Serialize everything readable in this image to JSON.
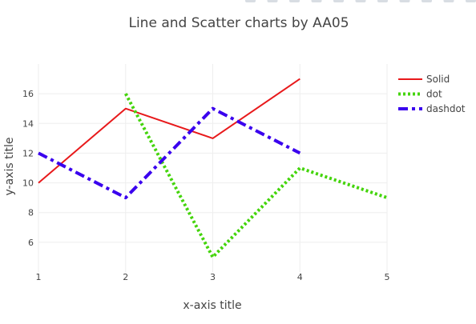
{
  "chart_data": {
    "type": "line",
    "title": "Line and Scatter charts by AA05",
    "xlabel": "x-axis title",
    "ylabel": "y-axis title",
    "xlim": [
      1,
      5
    ],
    "ylim": [
      4,
      18
    ],
    "x_ticks": [
      1,
      2,
      3,
      4,
      5
    ],
    "y_ticks": [
      6,
      8,
      10,
      12,
      14,
      16
    ],
    "grid": true,
    "legend_position": "top-right",
    "series": [
      {
        "name": "Solid",
        "x": [
          1,
          2,
          3,
          4
        ],
        "y": [
          10,
          15,
          13,
          17
        ],
        "color": "#e8191b",
        "dash": "solid"
      },
      {
        "name": "dot",
        "x": [
          2,
          3,
          4,
          5
        ],
        "y": [
          16,
          5,
          11,
          9
        ],
        "color": "#44d40b",
        "dash": "dot"
      },
      {
        "name": "dashdot",
        "x": [
          1,
          2,
          3,
          4
        ],
        "y": [
          12,
          9,
          15,
          12
        ],
        "color": "#3a00ee",
        "dash": "dashdot"
      }
    ]
  },
  "modebar": {
    "icons": [
      "camera-icon",
      "zoom-icon",
      "pan-icon",
      "zoom-in-icon",
      "zoom-out-icon",
      "autoscale-icon",
      "reset-axes-icon",
      "spike-lines-icon",
      "hover-closest-icon",
      "hover-compare-icon",
      "plotly-logo-icon"
    ]
  }
}
